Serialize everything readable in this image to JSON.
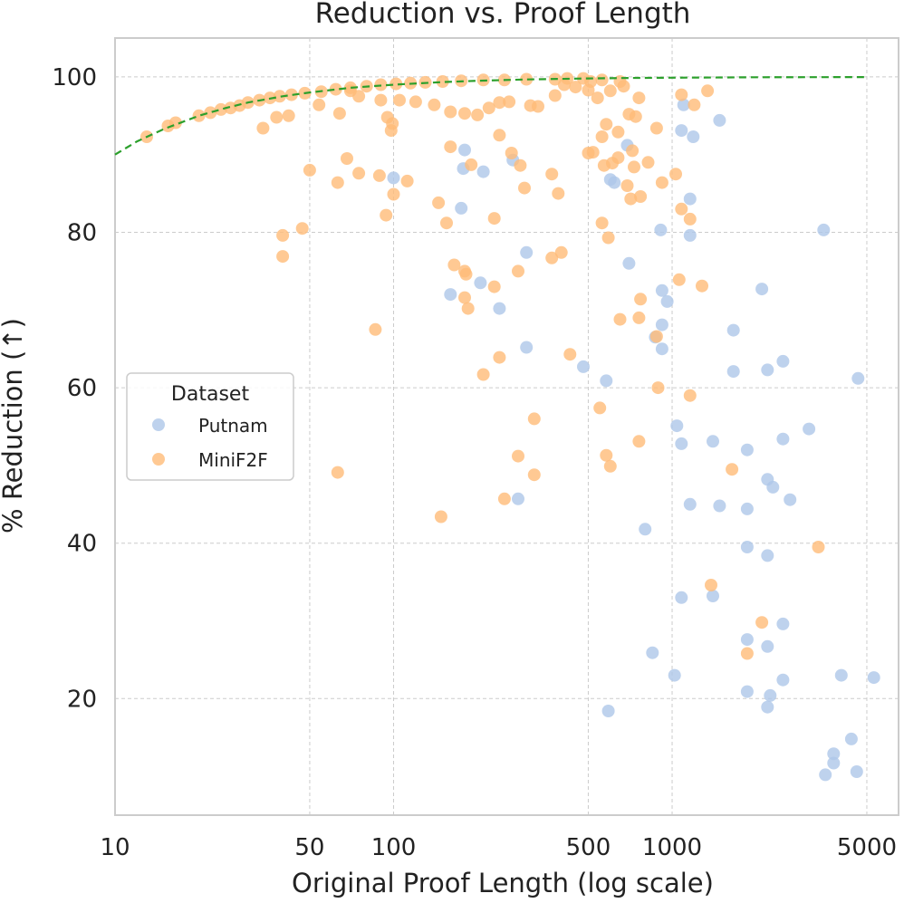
{
  "chart_data": {
    "type": "scatter",
    "title": "Reduction vs. Proof Length",
    "xlabel": "Original Proof Length (log scale)",
    "ylabel": "% Reduction (↑)",
    "xscale": "log",
    "xlim": [
      10,
      6500
    ],
    "ylim": [
      5,
      105
    ],
    "x_ticks": [
      10,
      50,
      100,
      500,
      1000,
      5000
    ],
    "x_tick_labels": [
      "10",
      "50",
      "100",
      "500",
      "1000",
      "5000"
    ],
    "y_ticks": [
      20,
      40,
      60,
      80,
      100
    ],
    "y_tick_labels": [
      "20",
      "40",
      "60",
      "80",
      "100"
    ],
    "grid": true,
    "legend": {
      "title": "Dataset",
      "position": "center-left"
    },
    "colors": {
      "Putnam": "#aec7e8",
      "MiniF2F": "#ffbb78",
      "fit": "#2ca02c"
    },
    "series": [
      {
        "name": "Putnam",
        "points": [
          [
            100,
            87
          ],
          [
            180,
            90.6
          ],
          [
            178,
            88.2
          ],
          [
            210,
            87.8
          ],
          [
            268,
            89.3
          ],
          [
            175,
            83.1
          ],
          [
            160,
            72
          ],
          [
            205,
            73.5
          ],
          [
            240,
            70.2
          ],
          [
            300,
            77.4
          ],
          [
            300,
            65.2
          ],
          [
            480,
            62.7
          ],
          [
            580,
            60.9
          ],
          [
            600,
            86.8
          ],
          [
            620,
            86.4
          ],
          [
            690,
            91.2
          ],
          [
            700,
            76
          ],
          [
            910,
            80.3
          ],
          [
            920,
            72.5
          ],
          [
            960,
            71.1
          ],
          [
            920,
            68.1
          ],
          [
            870,
            66.5
          ],
          [
            920,
            65
          ],
          [
            1100,
            96.4
          ],
          [
            1080,
            93.1
          ],
          [
            1190,
            92.3
          ],
          [
            1160,
            84.3
          ],
          [
            1160,
            79.6
          ],
          [
            1480,
            94.4
          ],
          [
            1660,
            67.4
          ],
          [
            1660,
            62.1
          ],
          [
            1040,
            55.1
          ],
          [
            1080,
            52.8
          ],
          [
            1400,
            53.1
          ],
          [
            1160,
            45
          ],
          [
            1480,
            44.8
          ],
          [
            1860,
            52
          ],
          [
            1860,
            44.4
          ],
          [
            1860,
            39.5
          ],
          [
            2100,
            72.7
          ],
          [
            2200,
            62.3
          ],
          [
            2200,
            48.2
          ],
          [
            2300,
            47.2
          ],
          [
            2500,
            63.4
          ],
          [
            2500,
            53.4
          ],
          [
            2650,
            45.6
          ],
          [
            3100,
            54.7
          ],
          [
            3500,
            80.3
          ],
          [
            4650,
            61.2
          ],
          [
            2200,
            38.4
          ],
          [
            280,
            45.7
          ],
          [
            800,
            41.8
          ],
          [
            1080,
            33
          ],
          [
            1400,
            33.2
          ],
          [
            1860,
            27.6
          ],
          [
            2200,
            26.7
          ],
          [
            2500,
            29.6
          ],
          [
            2500,
            22.4
          ],
          [
            1860,
            20.9
          ],
          [
            2250,
            20.4
          ],
          [
            2200,
            18.9
          ],
          [
            1020,
            23
          ],
          [
            850,
            25.9
          ],
          [
            590,
            18.4
          ],
          [
            3550,
            10.2
          ],
          [
            3800,
            11.7
          ],
          [
            3800,
            12.9
          ],
          [
            4050,
            23
          ],
          [
            4400,
            14.8
          ],
          [
            4600,
            10.6
          ],
          [
            5300,
            22.7
          ]
        ]
      },
      {
        "name": "MiniF2F",
        "points": [
          [
            13,
            92.3
          ],
          [
            15.5,
            93.7
          ],
          [
            16.5,
            94.1
          ],
          [
            20,
            95
          ],
          [
            22,
            95.4
          ],
          [
            24,
            95.8
          ],
          [
            26,
            96
          ],
          [
            28,
            96.3
          ],
          [
            30,
            96.7
          ],
          [
            33,
            97
          ],
          [
            36,
            97.3
          ],
          [
            39,
            97.5
          ],
          [
            43,
            97.7
          ],
          [
            48,
            97.9
          ],
          [
            55,
            98.1
          ],
          [
            62,
            98.4
          ],
          [
            70,
            98.6
          ],
          [
            80,
            98.8
          ],
          [
            90,
            99
          ],
          [
            102,
            99.1
          ],
          [
            115,
            99.2
          ],
          [
            130,
            99.3
          ],
          [
            150,
            99.4
          ],
          [
            175,
            99.5
          ],
          [
            210,
            99.6
          ],
          [
            250,
            99.6
          ],
          [
            300,
            99.7
          ],
          [
            380,
            99.7
          ],
          [
            420,
            99.8
          ],
          [
            480,
            99.8
          ],
          [
            560,
            99.6
          ],
          [
            650,
            99.4
          ],
          [
            34,
            93.4
          ],
          [
            38,
            94.8
          ],
          [
            42,
            95
          ],
          [
            54,
            96.4
          ],
          [
            64,
            95.3
          ],
          [
            70,
            98.2
          ],
          [
            75,
            97.5
          ],
          [
            90,
            97
          ],
          [
            95,
            94.8
          ],
          [
            98,
            93.1
          ],
          [
            99,
            94
          ],
          [
            105,
            97
          ],
          [
            120,
            96.8
          ],
          [
            140,
            96.4
          ],
          [
            160,
            95.5
          ],
          [
            180,
            95.3
          ],
          [
            200,
            95.1
          ],
          [
            220,
            96
          ],
          [
            240,
            96.7
          ],
          [
            260,
            96.8
          ],
          [
            310,
            96.3
          ],
          [
            330,
            96.2
          ],
          [
            380,
            97.6
          ],
          [
            410,
            99
          ],
          [
            450,
            98.7
          ],
          [
            500,
            98.3
          ],
          [
            510,
            99.4
          ],
          [
            540,
            97.3
          ],
          [
            600,
            98.2
          ],
          [
            670,
            98.8
          ],
          [
            760,
            97.3
          ],
          [
            1080,
            97.7
          ],
          [
            1200,
            96.4
          ],
          [
            1340,
            98.2
          ],
          [
            700,
            95.2
          ],
          [
            740,
            94.9
          ],
          [
            580,
            93.9
          ],
          [
            640,
            92.9
          ],
          [
            560,
            92.3
          ],
          [
            500,
            90.2
          ],
          [
            520,
            90.3
          ],
          [
            570,
            88.6
          ],
          [
            610,
            88.9
          ],
          [
            640,
            89.6
          ],
          [
            720,
            90.5
          ],
          [
            730,
            88.4
          ],
          [
            690,
            86
          ],
          [
            710,
            84.3
          ],
          [
            770,
            84.6
          ],
          [
            820,
            89
          ],
          [
            880,
            93.4
          ],
          [
            920,
            86.4
          ],
          [
            1030,
            87.5
          ],
          [
            1080,
            83
          ],
          [
            1160,
            81.7
          ],
          [
            560,
            81.2
          ],
          [
            590,
            79.3
          ],
          [
            50,
            88
          ],
          [
            63,
            86.4
          ],
          [
            68,
            89.5
          ],
          [
            75,
            87.6
          ],
          [
            89,
            87.3
          ],
          [
            100,
            84.9
          ],
          [
            112,
            86.6
          ],
          [
            94,
            82.2
          ],
          [
            145,
            83.8
          ],
          [
            160,
            91
          ],
          [
            190,
            88.7
          ],
          [
            230,
            81.8
          ],
          [
            240,
            92.5
          ],
          [
            265,
            90.2
          ],
          [
            285,
            88.6
          ],
          [
            295,
            85.7
          ],
          [
            370,
            87.5
          ],
          [
            390,
            85
          ],
          [
            155,
            81.2
          ],
          [
            47,
            80.5
          ],
          [
            40,
            79.6
          ],
          [
            40,
            76.9
          ],
          [
            165,
            75.8
          ],
          [
            180,
            75
          ],
          [
            182,
            74.6
          ],
          [
            230,
            73
          ],
          [
            280,
            75
          ],
          [
            370,
            76.7
          ],
          [
            400,
            77.4
          ],
          [
            1060,
            73.9
          ],
          [
            1280,
            73.1
          ],
          [
            770,
            71.4
          ],
          [
            650,
            68.8
          ],
          [
            760,
            69
          ],
          [
            180,
            71.6
          ],
          [
            185,
            70.2
          ],
          [
            86,
            67.5
          ],
          [
            430,
            64.3
          ],
          [
            240,
            63.9
          ],
          [
            210,
            61.7
          ],
          [
            880,
            66.6
          ],
          [
            890,
            60
          ],
          [
            1160,
            59
          ],
          [
            550,
            57.4
          ],
          [
            320,
            56
          ],
          [
            580,
            51.3
          ],
          [
            600,
            49.9
          ],
          [
            760,
            53.1
          ],
          [
            280,
            51.2
          ],
          [
            320,
            48.8
          ],
          [
            250,
            45.7
          ],
          [
            63,
            49.1
          ],
          [
            148,
            43.4
          ],
          [
            1640,
            49.5
          ],
          [
            3350,
            39.5
          ],
          [
            1380,
            34.6
          ],
          [
            2100,
            29.8
          ],
          [
            1860,
            25.8
          ]
        ]
      }
    ],
    "fit_line": {
      "name": "fit",
      "style": "dashed",
      "points": [
        [
          10,
          90
        ],
        [
          12,
          91.7
        ],
        [
          15,
          93.3
        ],
        [
          20,
          95
        ],
        [
          25,
          96
        ],
        [
          30,
          96.7
        ],
        [
          40,
          97.5
        ],
        [
          50,
          98
        ],
        [
          70,
          98.6
        ],
        [
          100,
          99
        ],
        [
          150,
          99.33
        ],
        [
          200,
          99.5
        ],
        [
          300,
          99.67
        ],
        [
          500,
          99.8
        ],
        [
          700,
          99.86
        ],
        [
          1000,
          99.9
        ],
        [
          2000,
          99.95
        ],
        [
          5000,
          99.98
        ]
      ]
    }
  }
}
